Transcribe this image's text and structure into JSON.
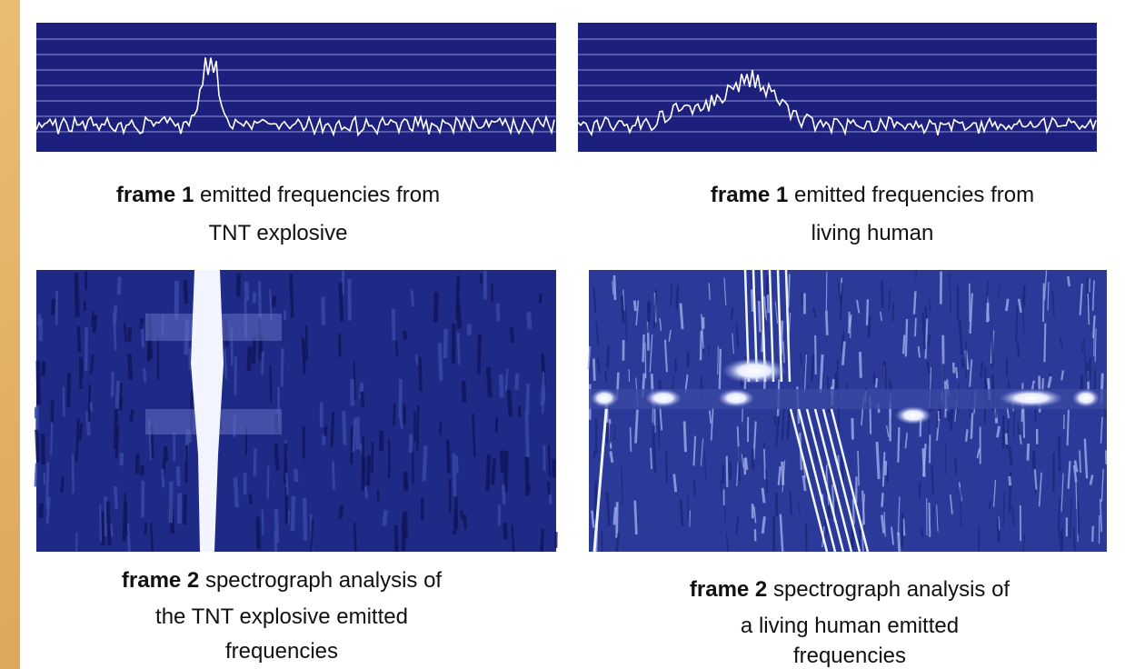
{
  "panels": [
    {
      "label": "frame 1",
      "caption_lines": [
        "emitted frequencies from",
        "TNT explosive"
      ]
    },
    {
      "label": "frame 1",
      "caption_lines": [
        "emitted frequencies from",
        "living  human"
      ]
    },
    {
      "label": "frame 2",
      "caption_lines": [
        "spectrograph analysis of",
        "the TNT explosive emitted",
        "frequencies"
      ]
    },
    {
      "label": "frame 2",
      "caption_lines": [
        "spectrograph analysis of",
        "a living  human emitted",
        "frequencies"
      ]
    }
  ]
}
